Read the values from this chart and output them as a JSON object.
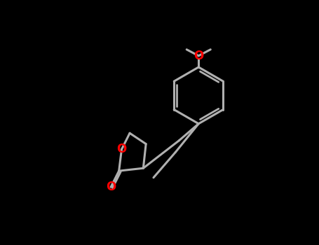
{
  "background_color": "#000000",
  "bond_color": "#b0b0b0",
  "oxygen_color": "#ff0000",
  "bond_width": 2.2,
  "figure_width": 4.55,
  "figure_height": 3.5,
  "dpi": 100,
  "xlim": [
    0,
    9
  ],
  "ylim": [
    0,
    7
  ]
}
